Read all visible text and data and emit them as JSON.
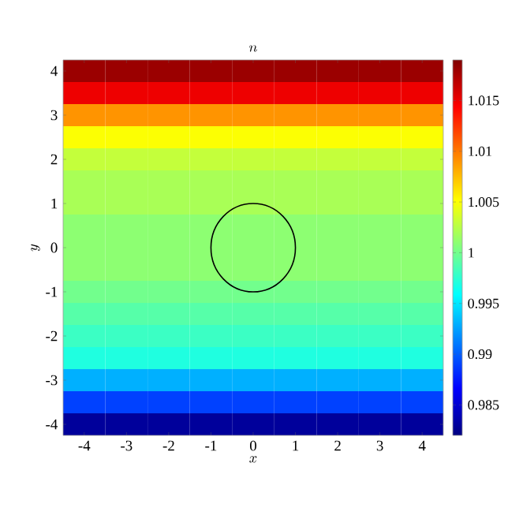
{
  "chart_data": {
    "type": "heatmap",
    "title": "n",
    "xlabel": "x",
    "ylabel": "y",
    "categories": [
      "-4",
      "-3",
      "-2",
      "-1",
      "0",
      "1",
      "2",
      "3",
      "4"
    ],
    "y_categories": [
      "4",
      null,
      "3",
      null,
      "2",
      null,
      "1",
      null,
      "0",
      null,
      "-1",
      null,
      "-2",
      null,
      "-3",
      null,
      "-4"
    ],
    "cells": [
      [
        1.018,
        1.018,
        1.018,
        1.018,
        1.018,
        1.018,
        1.018,
        1.018,
        1.018
      ],
      [
        1.015,
        1.015,
        1.015,
        1.015,
        1.015,
        1.015,
        1.015,
        1.015,
        1.015
      ],
      [
        1.009,
        1.009,
        1.009,
        1.009,
        1.009,
        1.009,
        1.009,
        1.009,
        1.009
      ],
      [
        1.005,
        1.005,
        1.005,
        1.005,
        1.005,
        1.005,
        1.005,
        1.005,
        1.005
      ],
      [
        1.003,
        1.003,
        1.003,
        1.003,
        1.003,
        1.003,
        1.003,
        1.003,
        1.003
      ],
      [
        1.002,
        1.002,
        1.002,
        1.002,
        1.002,
        1.002,
        1.002,
        1.002,
        1.002
      ],
      [
        1.002,
        1.002,
        1.002,
        1.002,
        1.002,
        1.002,
        1.002,
        1.002,
        1.002
      ],
      [
        1.001,
        1.001,
        1.001,
        1.001,
        1.001,
        1.001,
        1.001,
        1.001,
        1.001
      ],
      [
        1.001,
        1.001,
        1.001,
        1.001,
        1.001,
        1.001,
        1.001,
        1.001,
        1.001
      ],
      [
        1.001,
        1.001,
        1.001,
        1.001,
        1.001,
        1.001,
        1.001,
        1.001,
        1.001
      ],
      [
        1.0,
        1.0,
        1.0,
        1.0,
        1.0,
        1.0,
        1.0,
        1.0,
        1.0
      ],
      [
        0.999,
        0.999,
        0.999,
        0.999,
        0.999,
        0.999,
        0.999,
        0.999,
        0.999
      ],
      [
        0.998,
        0.998,
        0.998,
        0.998,
        0.998,
        0.998,
        0.998,
        0.998,
        0.998
      ],
      [
        0.997,
        0.997,
        0.997,
        0.997,
        0.997,
        0.997,
        0.997,
        0.997,
        0.997
      ],
      [
        0.993,
        0.993,
        0.993,
        0.993,
        0.993,
        0.993,
        0.993,
        0.993,
        0.993
      ],
      [
        0.989,
        0.989,
        0.989,
        0.989,
        0.989,
        0.989,
        0.989,
        0.989,
        0.989
      ],
      [
        0.983,
        0.983,
        0.983,
        0.983,
        0.983,
        0.983,
        0.983,
        0.983,
        0.983
      ]
    ],
    "clim": [
      0.982,
      1.019
    ],
    "cticks": [
      0.985,
      0.99,
      0.995,
      1,
      1.005,
      1.01,
      1.015
    ]
  }
}
